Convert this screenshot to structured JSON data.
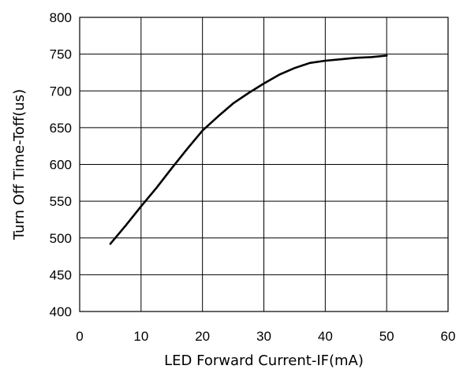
{
  "chart_data": {
    "type": "line",
    "title": "",
    "xlabel": "LED Forward Current-IF(mA)",
    "ylabel": "Turn Off Time-Toff(us)",
    "xlim": [
      0,
      60
    ],
    "ylim": [
      400,
      800
    ],
    "x_ticks": [
      0,
      10,
      20,
      30,
      40,
      50,
      60
    ],
    "y_ticks": [
      400,
      450,
      500,
      550,
      600,
      650,
      700,
      750,
      800
    ],
    "grid": true,
    "series": [
      {
        "x": [
          5,
          7.5,
          10,
          12.5,
          15,
          17.5,
          20,
          22.5,
          25,
          27.5,
          30,
          32.5,
          35,
          37.5,
          40,
          42.5,
          45,
          47.5,
          50
        ],
        "y": [
          492,
          517,
          543,
          568,
          595,
          621,
          646,
          665,
          683,
          697,
          710,
          722,
          731,
          738,
          741,
          743,
          745,
          746,
          748
        ]
      }
    ]
  }
}
